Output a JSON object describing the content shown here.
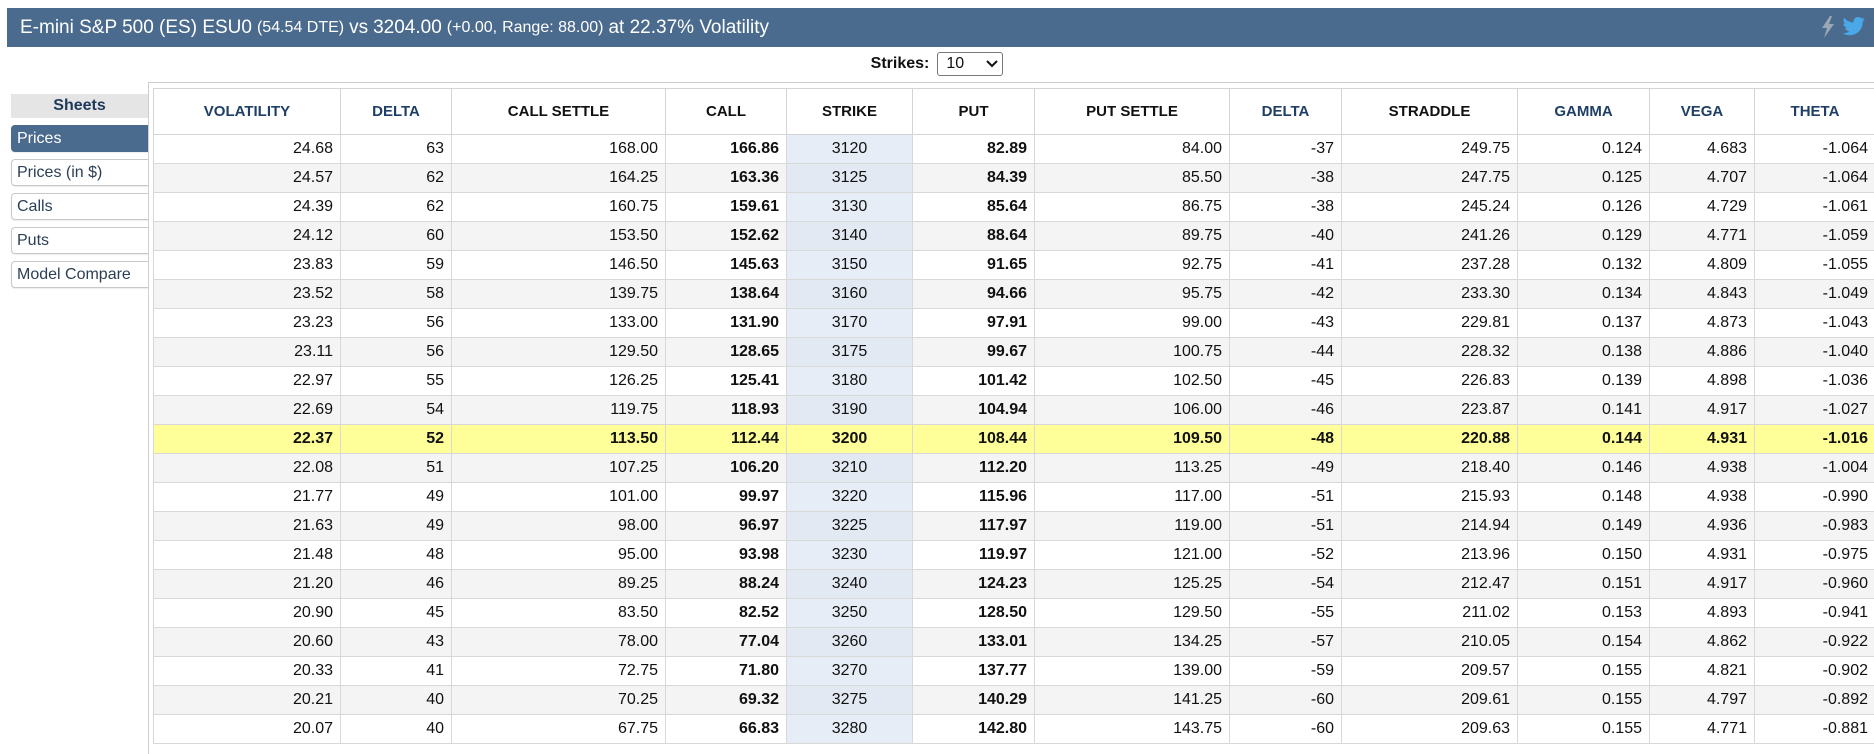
{
  "header": {
    "underlying": "E-mini S&P 500 (ES) ESU0",
    "dte": "(54.54 DTE)",
    "vs": "vs",
    "price": "3204.00",
    "change": "(+0.00,",
    "range": "Range: 88.00)",
    "volatility": "at 22.37% Volatility",
    "icons": [
      "lightning-icon",
      "twitter-bird-icon"
    ]
  },
  "strikes": {
    "label": "Strikes:",
    "value": "10"
  },
  "sidebar": {
    "title": "Sheets",
    "items": [
      {
        "label": "Prices",
        "active": true
      },
      {
        "label": "Prices (in $)",
        "active": false
      },
      {
        "label": "Calls",
        "active": false
      },
      {
        "label": "Puts",
        "active": false
      },
      {
        "label": "Model Compare",
        "active": false
      }
    ]
  },
  "table": {
    "columns": [
      "VOLATILITY",
      "DELTA",
      "CALL SETTLE",
      "CALL",
      "STRIKE",
      "PUT",
      "PUT SETTLE",
      "DELTA",
      "STRADDLE",
      "GAMMA",
      "VEGA",
      "THETA"
    ],
    "atm_strike": "3200",
    "rows": [
      [
        "24.68",
        "63",
        "168.00",
        "166.86",
        "3120",
        "82.89",
        "84.00",
        "-37",
        "249.75",
        "0.124",
        "4.683",
        "-1.064"
      ],
      [
        "24.57",
        "62",
        "164.25",
        "163.36",
        "3125",
        "84.39",
        "85.50",
        "-38",
        "247.75",
        "0.125",
        "4.707",
        "-1.064"
      ],
      [
        "24.39",
        "62",
        "160.75",
        "159.61",
        "3130",
        "85.64",
        "86.75",
        "-38",
        "245.24",
        "0.126",
        "4.729",
        "-1.061"
      ],
      [
        "24.12",
        "60",
        "153.50",
        "152.62",
        "3140",
        "88.64",
        "89.75",
        "-40",
        "241.26",
        "0.129",
        "4.771",
        "-1.059"
      ],
      [
        "23.83",
        "59",
        "146.50",
        "145.63",
        "3150",
        "91.65",
        "92.75",
        "-41",
        "237.28",
        "0.132",
        "4.809",
        "-1.055"
      ],
      [
        "23.52",
        "58",
        "139.75",
        "138.64",
        "3160",
        "94.66",
        "95.75",
        "-42",
        "233.30",
        "0.134",
        "4.843",
        "-1.049"
      ],
      [
        "23.23",
        "56",
        "133.00",
        "131.90",
        "3170",
        "97.91",
        "99.00",
        "-43",
        "229.81",
        "0.137",
        "4.873",
        "-1.043"
      ],
      [
        "23.11",
        "56",
        "129.50",
        "128.65",
        "3175",
        "99.67",
        "100.75",
        "-44",
        "228.32",
        "0.138",
        "4.886",
        "-1.040"
      ],
      [
        "22.97",
        "55",
        "126.25",
        "125.41",
        "3180",
        "101.42",
        "102.50",
        "-45",
        "226.83",
        "0.139",
        "4.898",
        "-1.036"
      ],
      [
        "22.69",
        "54",
        "119.75",
        "118.93",
        "3190",
        "104.94",
        "106.00",
        "-46",
        "223.87",
        "0.141",
        "4.917",
        "-1.027"
      ],
      [
        "22.37",
        "52",
        "113.50",
        "112.44",
        "3200",
        "108.44",
        "109.50",
        "-48",
        "220.88",
        "0.144",
        "4.931",
        "-1.016"
      ],
      [
        "22.08",
        "51",
        "107.25",
        "106.20",
        "3210",
        "112.20",
        "113.25",
        "-49",
        "218.40",
        "0.146",
        "4.938",
        "-1.004"
      ],
      [
        "21.77",
        "49",
        "101.00",
        "99.97",
        "3220",
        "115.96",
        "117.00",
        "-51",
        "215.93",
        "0.148",
        "4.938",
        "-0.990"
      ],
      [
        "21.63",
        "49",
        "98.00",
        "96.97",
        "3225",
        "117.97",
        "119.00",
        "-51",
        "214.94",
        "0.149",
        "4.936",
        "-0.983"
      ],
      [
        "21.48",
        "48",
        "95.00",
        "93.98",
        "3230",
        "119.97",
        "121.00",
        "-52",
        "213.96",
        "0.150",
        "4.931",
        "-0.975"
      ],
      [
        "21.20",
        "46",
        "89.25",
        "88.24",
        "3240",
        "124.23",
        "125.25",
        "-54",
        "212.47",
        "0.151",
        "4.917",
        "-0.960"
      ],
      [
        "20.90",
        "45",
        "83.50",
        "82.52",
        "3250",
        "128.50",
        "129.50",
        "-55",
        "211.02",
        "0.153",
        "4.893",
        "-0.941"
      ],
      [
        "20.60",
        "43",
        "78.00",
        "77.04",
        "3260",
        "133.01",
        "134.25",
        "-57",
        "210.05",
        "0.154",
        "4.862",
        "-0.922"
      ],
      [
        "20.33",
        "41",
        "72.75",
        "71.80",
        "3270",
        "137.77",
        "139.00",
        "-59",
        "209.57",
        "0.155",
        "4.821",
        "-0.902"
      ],
      [
        "20.21",
        "40",
        "70.25",
        "69.32",
        "3275",
        "140.29",
        "141.25",
        "-60",
        "209.61",
        "0.155",
        "4.797",
        "-0.892"
      ],
      [
        "20.07",
        "40",
        "67.75",
        "66.83",
        "3280",
        "142.80",
        "143.75",
        "-60",
        "209.63",
        "0.155",
        "4.771",
        "-0.881"
      ]
    ]
  }
}
